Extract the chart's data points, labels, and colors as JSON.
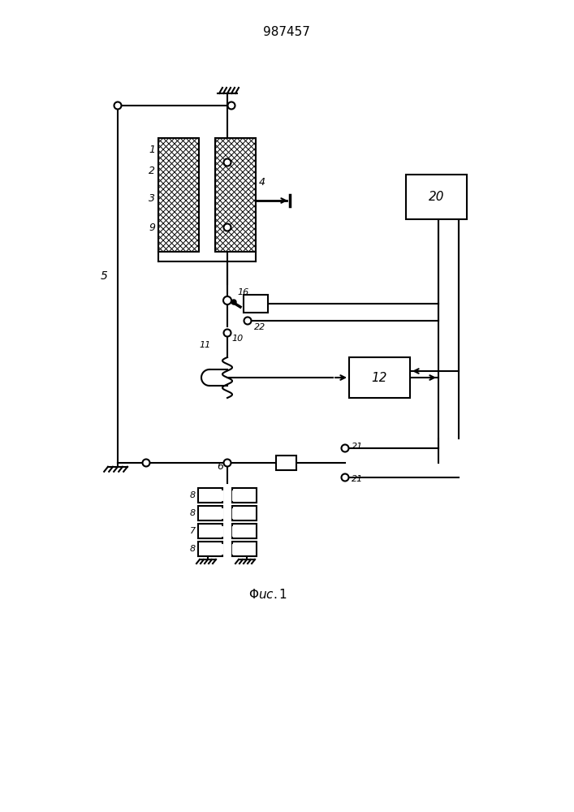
{
  "title": "987457",
  "bg_color": "#ffffff",
  "line_color": "#000000",
  "title_fontsize": 11,
  "label_fontsize": 9
}
